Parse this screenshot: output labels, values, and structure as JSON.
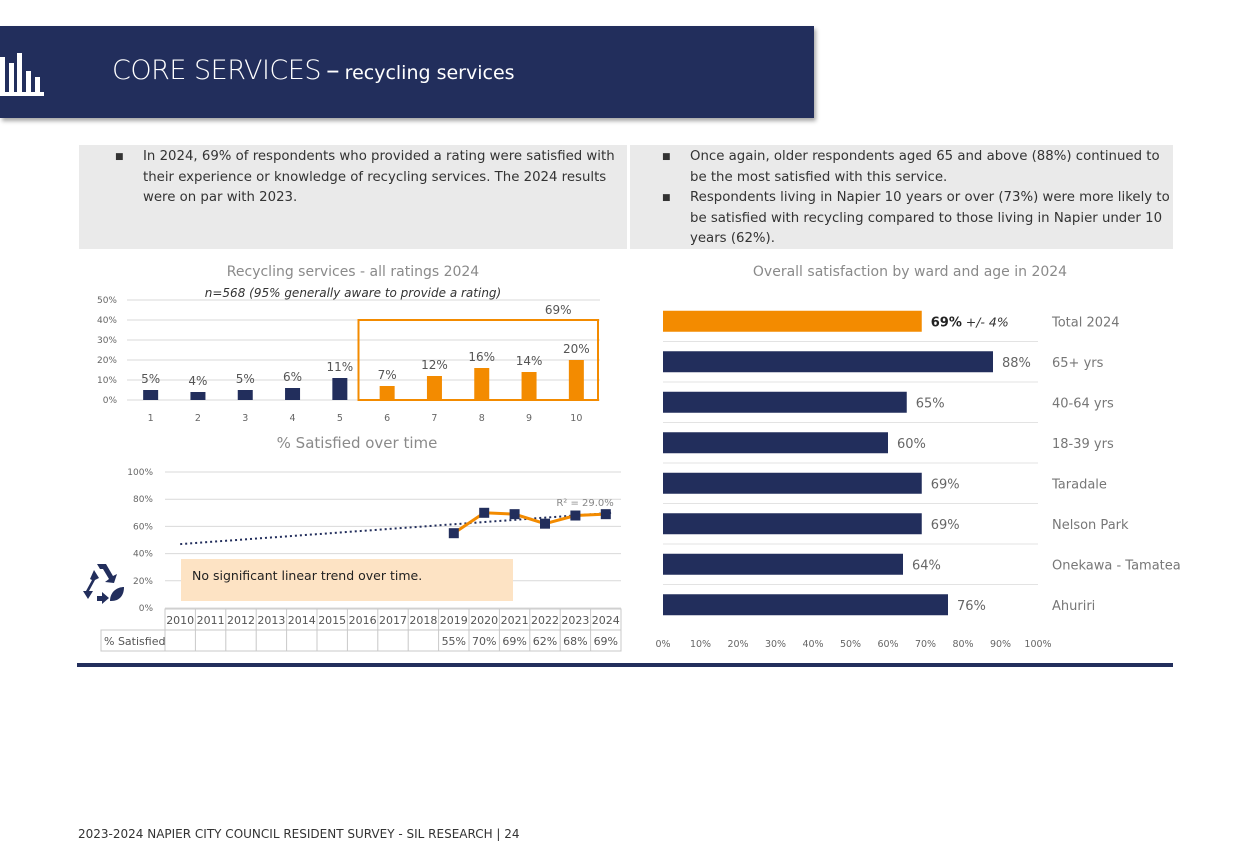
{
  "header": {
    "title_main": "CORE SERVICES",
    "title_dash": "–",
    "title_sub": "recycling services",
    "icon": "bar-chart-icon"
  },
  "left_box": {
    "bullets": [
      [
        "In 2024, 69% of respondents who provided a rating were satisfied with",
        "their experience or knowledge of recycling services. The 2024 results",
        "were on par with 2023."
      ]
    ]
  },
  "right_box": {
    "bullets": [
      [
        "Once again, older respondents aged 65 and above (88%) continued to",
        "be the most satisfied with this service."
      ],
      [
        "Respondents living in Napier 10 years or over (73%) were more likely to",
        "be satisfied with recycling compared to those living in Napier under 10",
        "years (62%)."
      ]
    ]
  },
  "colors": {
    "navy": "#222e5c",
    "orange": "#f38b00",
    "gray_box": "#eaeaea",
    "note_bg": "#fde3c4"
  },
  "chart_data": [
    {
      "type": "bar",
      "title": "Recycling services - all ratings 2024",
      "subtitle": "n=568 (95% generally aware to provide a rating)",
      "categories": [
        "1",
        "2",
        "3",
        "4",
        "5",
        "6",
        "7",
        "8",
        "9",
        "10"
      ],
      "values": [
        5,
        4,
        5,
        6,
        11,
        7,
        12,
        16,
        14,
        20
      ],
      "value_labels": [
        "5%",
        "4%",
        "5%",
        "6%",
        "11%",
        "7%",
        "12%",
        "16%",
        "14%",
        "20%"
      ],
      "bar_colors": [
        "#222e5c",
        "#222e5c",
        "#222e5c",
        "#222e5c",
        "#222e5c",
        "#f38b00",
        "#f38b00",
        "#f38b00",
        "#f38b00",
        "#f38b00"
      ],
      "highlight": {
        "from": "6",
        "to": "10",
        "label": "69%"
      },
      "y_ticks": [
        "0%",
        "10%",
        "20%",
        "30%",
        "40%",
        "50%"
      ],
      "ylim": [
        0,
        50
      ],
      "grid": true
    },
    {
      "type": "line",
      "title": "% Satisfied over time",
      "x": [
        "2010",
        "2011",
        "2012",
        "2013",
        "2014",
        "2015",
        "2016",
        "2017",
        "2018",
        "2019",
        "2020",
        "2021",
        "2022",
        "2023",
        "2024"
      ],
      "series": [
        {
          "name": "% Satisfied",
          "values": [
            null,
            null,
            null,
            null,
            null,
            null,
            null,
            null,
            null,
            55,
            70,
            69,
            62,
            68,
            69
          ],
          "labels": [
            "",
            "",
            "",
            "",
            "",
            "",
            "",
            "",
            "",
            "55%",
            "70%",
            "69%",
            "62%",
            "68%",
            "69%"
          ]
        }
      ],
      "trendline": {
        "label": "R² = 29.0%"
      },
      "y_ticks": [
        "0%",
        "20%",
        "40%",
        "60%",
        "80%",
        "100%"
      ],
      "ylim": [
        0,
        100
      ],
      "grid": true,
      "note": "No significant linear trend over time."
    },
    {
      "type": "bar",
      "orientation": "horizontal",
      "title": "Overall satisfaction by ward and age in 2024",
      "categories": [
        "Total 2024",
        "65+ yrs",
        "40-64 yrs",
        "18-39 yrs",
        "Taradale",
        "Nelson Park",
        "Onekawa - Tamatea",
        "Ahuriri"
      ],
      "values": [
        69,
        88,
        65,
        60,
        69,
        69,
        64,
        76
      ],
      "value_labels": [
        "69%",
        "88%",
        "65%",
        "60%",
        "69%",
        "69%",
        "64%",
        "76%"
      ],
      "margin_label": "+/- 4%",
      "bar_colors": [
        "#f38b00",
        "#222e5c",
        "#222e5c",
        "#222e5c",
        "#222e5c",
        "#222e5c",
        "#222e5c",
        "#222e5c"
      ],
      "x_ticks": [
        "0%",
        "10%",
        "20%",
        "30%",
        "40%",
        "50%",
        "60%",
        "70%",
        "80%",
        "90%",
        "100%"
      ],
      "xlim": [
        0,
        100
      ],
      "grid": true
    }
  ],
  "footer": "2023-2024 NAPIER CITY COUNCIL RESIDENT SURVEY - SIL RESEARCH | 24"
}
